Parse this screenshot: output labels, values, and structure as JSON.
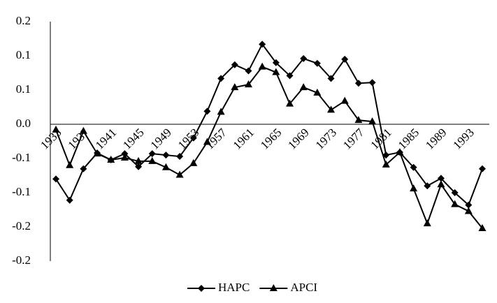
{
  "chart_data": {
    "type": "line",
    "categories": [
      "1933",
      null,
      "1937",
      null,
      "1941",
      null,
      "1945",
      null,
      "1949",
      null,
      "1953",
      null,
      "1957",
      null,
      "1961",
      null,
      "1965",
      null,
      "1969",
      null,
      "1973",
      null,
      "1977",
      null,
      "1981",
      null,
      "1985",
      null,
      "1989",
      null,
      "1993",
      null
    ],
    "series": [
      {
        "name": "HAPC",
        "color": "#000000",
        "marker": "diamond",
        "values": [
          -0.08,
          -0.111,
          -0.065,
          -0.042,
          -0.052,
          -0.043,
          -0.062,
          -0.043,
          -0.045,
          -0.047,
          -0.02,
          0.019,
          0.067,
          0.087,
          0.078,
          0.117,
          0.09,
          0.071,
          0.096,
          0.089,
          0.067,
          0.095,
          0.06,
          0.061,
          -0.045,
          -0.041,
          -0.063,
          -0.09,
          -0.079,
          -0.1,
          -0.118,
          -0.065
        ]
      },
      {
        "name": "APCI",
        "color": "#000000",
        "marker": "triangle",
        "values": [
          -0.008,
          -0.06,
          -0.01,
          -0.043,
          -0.052,
          -0.049,
          -0.054,
          -0.054,
          -0.063,
          -0.074,
          -0.057,
          -0.026,
          0.018,
          0.054,
          0.058,
          0.084,
          0.076,
          0.03,
          0.054,
          0.046,
          0.021,
          0.034,
          0.006,
          0.004,
          -0.059,
          -0.041,
          -0.094,
          -0.145,
          -0.088,
          -0.117,
          -0.127,
          -0.152
        ]
      }
    ],
    "ylim": [
      -0.2,
      0.15
    ],
    "yticks": [
      {
        "value": 0.15,
        "label": "0.2"
      },
      {
        "value": 0.1,
        "label": "0.1"
      },
      {
        "value": 0.05,
        "label": "0.1"
      },
      {
        "value": 0,
        "label": "0.0"
      },
      {
        "value": -0.05,
        "label": "-0.1"
      },
      {
        "value": -0.1,
        "label": "-0.1"
      },
      {
        "value": -0.15,
        "label": "-0.2"
      },
      {
        "value": -0.2,
        "label": "-0.2"
      }
    ],
    "grid": false,
    "legend": "bottom"
  }
}
